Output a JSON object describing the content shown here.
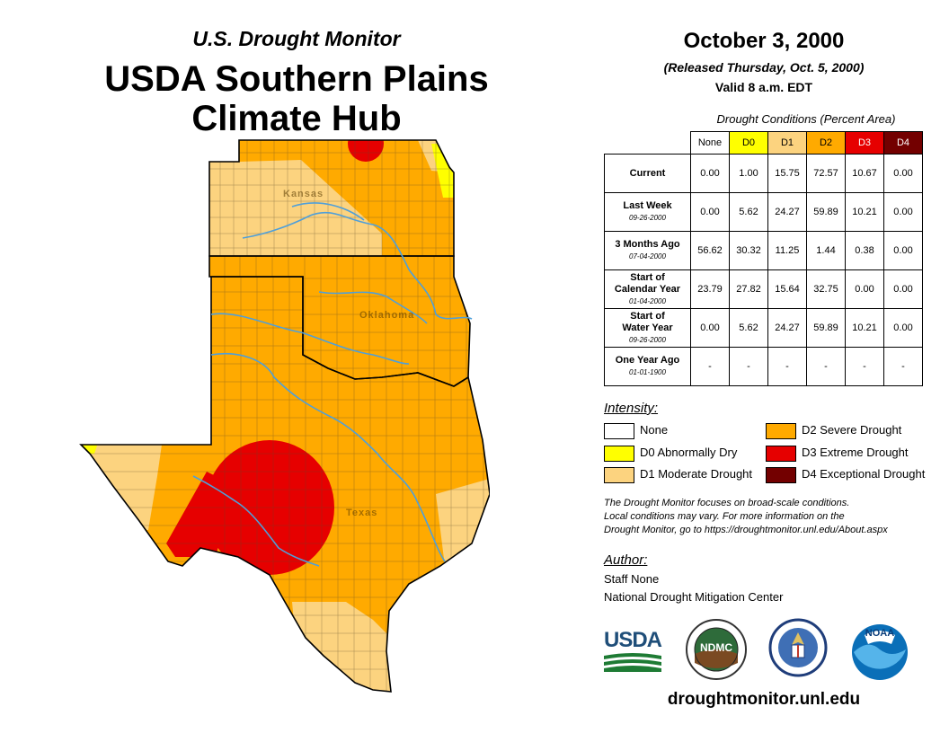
{
  "header": {
    "subtitle": "U.S. Drought Monitor",
    "title_line1": "USDA Southern Plains",
    "title_line2": "Climate Hub"
  },
  "map": {
    "region_names": [
      "Kansas",
      "Oklahoma",
      "Texas"
    ],
    "category_colors": {
      "None": "#ffffff",
      "D0": "#ffff00",
      "D1": "#fcd37f",
      "D2": "#ffaa00",
      "D3": "#e60000",
      "D4": "#730000"
    },
    "river_color": "#4f9fd9",
    "county_line_color": "#5a4a2a"
  },
  "release": {
    "date": "October 3, 2000",
    "released": "(Released Thursday, Oct. 5, 2000)",
    "valid": "Valid 8 a.m. EDT"
  },
  "table": {
    "caption": "Drought Conditions (Percent Area)",
    "columns": [
      "None",
      "D0",
      "D1",
      "D2",
      "D3",
      "D4"
    ],
    "column_colors": [
      "#ffffff",
      "#ffff00",
      "#fcd37f",
      "#ffaa00",
      "#e60000",
      "#730000"
    ],
    "column_text_colors": [
      "#000000",
      "#000000",
      "#000000",
      "#000000",
      "#ffffff",
      "#ffffff"
    ],
    "rows": [
      {
        "label1": "Current",
        "label2": "",
        "date": "",
        "values": [
          "0.00",
          "1.00",
          "15.75",
          "72.57",
          "10.67",
          "0.00"
        ]
      },
      {
        "label1": "Last Week",
        "label2": "",
        "date": "09-26-2000",
        "values": [
          "0.00",
          "5.62",
          "24.27",
          "59.89",
          "10.21",
          "0.00"
        ]
      },
      {
        "label1": "3 Months Ago",
        "label2": "",
        "date": "07-04-2000",
        "values": [
          "56.62",
          "30.32",
          "11.25",
          "1.44",
          "0.38",
          "0.00"
        ]
      },
      {
        "label1": "Start of",
        "label2": "Calendar Year",
        "date": "01-04-2000",
        "values": [
          "23.79",
          "27.82",
          "15.64",
          "32.75",
          "0.00",
          "0.00"
        ]
      },
      {
        "label1": "Start of",
        "label2": "Water Year",
        "date": "09-26-2000",
        "values": [
          "0.00",
          "5.62",
          "24.27",
          "59.89",
          "10.21",
          "0.00"
        ]
      },
      {
        "label1": "One Year Ago",
        "label2": "",
        "date": "01-01-1900",
        "values": [
          "-",
          "-",
          "-",
          "-",
          "-",
          "-"
        ]
      }
    ]
  },
  "legend": {
    "title": "Intensity:",
    "items": [
      {
        "label": "None",
        "color": "#ffffff"
      },
      {
        "label": "D0 Abnormally Dry",
        "color": "#ffff00"
      },
      {
        "label": "D1 Moderate Drought",
        "color": "#fcd37f"
      },
      {
        "label": "D2 Severe Drought",
        "color": "#ffaa00"
      },
      {
        "label": "D3 Extreme Drought",
        "color": "#e60000"
      },
      {
        "label": "D4 Exceptional Drought",
        "color": "#730000"
      }
    ]
  },
  "note": {
    "line1": "The Drought Monitor focuses on broad-scale conditions.",
    "line2": "Local conditions may vary. For more information on the",
    "line3": "Drought Monitor, go to https://droughtmonitor.unl.edu/About.aspx"
  },
  "author": {
    "title": "Author:",
    "name": "Staff None",
    "org": "National Drought Mitigation Center"
  },
  "logos": {
    "usda": "USDA",
    "ndmc": "NDMC",
    "noaa": "NOAA"
  },
  "website": "droughtmonitor.unl.edu"
}
